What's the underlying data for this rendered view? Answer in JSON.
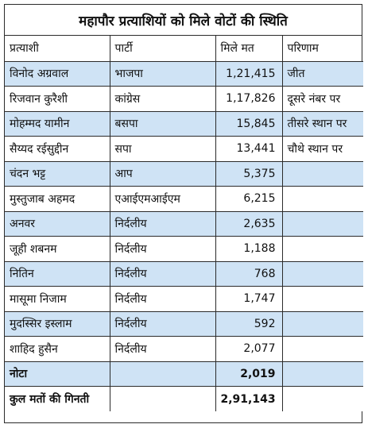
{
  "title": "महापौर प्रत्याशियों को मिले वोटों की स्थिति",
  "headers": [
    "प्रत्याशी",
    "पार्टी",
    "मिले मत",
    "परिणाम"
  ],
  "rows": [
    {
      "name": "विनोद अग्रवाल",
      "party": "भाजपा",
      "votes": "1,21,415",
      "result": "जीत"
    },
    {
      "name": "रिजवान कुरैशी",
      "party": "कांग्रेस",
      "votes": "1,17,826",
      "result": "दूसरे नंबर पर"
    },
    {
      "name": "मोहम्मद यामीन",
      "party": "बसपा",
      "votes": "15,845",
      "result": "तीसरे स्थान पर"
    },
    {
      "name": "सैय्यद रईसुद्दीन",
      "party": "सपा",
      "votes": "13,441",
      "result": "चौथे स्थान पर"
    },
    {
      "name": "चंदन भट्ट",
      "party": "आप",
      "votes": "5,375",
      "result": ""
    },
    {
      "name": "मुस्तुजाब अहमद",
      "party": "एआईएमआईएम",
      "votes": "6,215",
      "result": ""
    },
    {
      "name": "अनवर",
      "party": "निर्दलीय",
      "votes": "2,635",
      "result": ""
    },
    {
      "name": "जूही शबनम",
      "party": "निर्दलीय",
      "votes": "1,188",
      "result": ""
    },
    {
      "name": "नितिन",
      "party": "निर्दलीय",
      "votes": "768",
      "result": ""
    },
    {
      "name": "मासूमा निजाम",
      "party": "निर्दलीय",
      "votes": "1,747",
      "result": ""
    },
    {
      "name": "मुदस्सिर इस्लाम",
      "party": "निर्दलीय",
      "votes": "592",
      "result": ""
    },
    {
      "name": "शाहिद हुसैन",
      "party": "निर्दलीय",
      "votes": "2,077",
      "result": ""
    }
  ],
  "nota": {
    "label": "नोटा",
    "votes": "2,019"
  },
  "total": {
    "label": "कुल मतों की गिनती",
    "votes": "2,91,143"
  },
  "colors": {
    "row_blue": "#cfe3f5",
    "row_white": "#ffffff",
    "border": "#2b2b2b"
  }
}
